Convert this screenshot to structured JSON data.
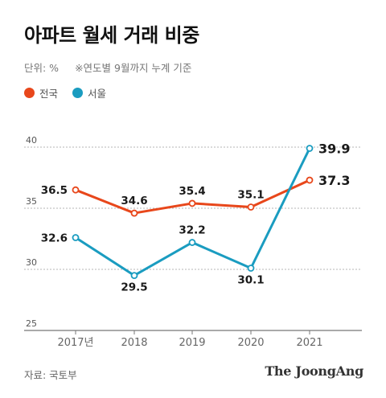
{
  "header": {
    "title": "아파트 월세 거래 비중",
    "unit": "단위: %",
    "note": "※연도별 9월까지 누계 기준"
  },
  "footer": {
    "source": "자료: 국토부",
    "brand": "The JoongAng"
  },
  "colors": {
    "national": "#e8471b",
    "seoul": "#1a9cc0"
  },
  "chart_data": {
    "type": "line",
    "categories": [
      "2017년",
      "2018",
      "2019",
      "2020",
      "2021"
    ],
    "series": [
      {
        "name": "전국",
        "values": [
          36.5,
          34.6,
          35.4,
          35.1,
          37.3
        ]
      },
      {
        "name": "서울",
        "values": [
          32.6,
          29.5,
          32.2,
          30.1,
          39.9
        ]
      }
    ],
    "yticks": [
      25,
      30,
      35,
      40
    ],
    "ylim": [
      25,
      41
    ],
    "grid": true,
    "legend": "top-left"
  }
}
